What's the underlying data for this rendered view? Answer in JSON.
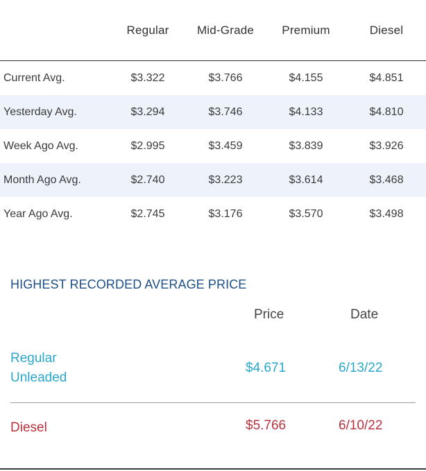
{
  "avg_table": {
    "columns": [
      "Regular",
      "Mid-Grade",
      "Premium",
      "Diesel"
    ],
    "mid_grade_line1": "Mid-",
    "mid_grade_line2": "Grade",
    "rows": [
      {
        "label": "Current Avg.",
        "values": [
          "$3.322",
          "$3.766",
          "$4.155",
          "$4.851"
        ]
      },
      {
        "label": "Yesterday Avg.",
        "values": [
          "$3.294",
          "$3.746",
          "$4.133",
          "$4.810"
        ]
      },
      {
        "label": "Week Ago Avg.",
        "values": [
          "$2.995",
          "$3.459",
          "$3.839",
          "$3.926"
        ]
      },
      {
        "label": "Month Ago Avg.",
        "values": [
          "$2.740",
          "$3.223",
          "$3.614",
          "$3.468"
        ]
      },
      {
        "label": "Year Ago Avg.",
        "values": [
          "$2.745",
          "$3.176",
          "$3.570",
          "$3.498"
        ]
      }
    ]
  },
  "highest": {
    "title": "HIGHEST RECORDED AVERAGE PRICE",
    "price_header": "Price",
    "date_header": "Date",
    "rows": [
      {
        "label_line1": "Regular",
        "label_line2": "Unleaded",
        "price": "$4.671",
        "date": "6/13/22"
      },
      {
        "label_line1": "Diesel",
        "label_line2": "",
        "price": "$5.766",
        "date": "6/10/22"
      }
    ]
  },
  "colors": {
    "title_blue": "#1d4f86",
    "regular_cyan": "#2aa7cc",
    "diesel_red": "#b8323f",
    "alt_row_bg": "#eef2fb"
  }
}
